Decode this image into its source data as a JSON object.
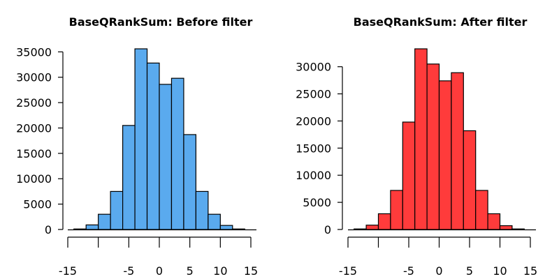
{
  "chart_data": [
    {
      "type": "bar",
      "title": "BaseQRankSum: Before filter",
      "color": "#5aaaee",
      "bin_edges": [
        -14,
        -12,
        -10,
        -8,
        -6,
        -4,
        -2,
        0,
        2,
        4,
        6,
        8,
        10,
        12,
        14
      ],
      "values": [
        100,
        900,
        3000,
        7500,
        20500,
        35600,
        32800,
        28600,
        29800,
        18700,
        7500,
        3000,
        800,
        100
      ],
      "xlim": [
        -15,
        15
      ],
      "ylim": [
        0,
        35600
      ],
      "xticks": [
        -15,
        -5,
        0,
        5,
        10,
        15
      ],
      "xtick_labels": [
        "-15",
        "-5",
        "0",
        "5",
        "10",
        "15"
      ],
      "yticks": [
        0,
        5000,
        10000,
        15000,
        20000,
        25000,
        30000,
        35000
      ],
      "ytick_labels": [
        "0",
        "5000",
        "10000",
        "15000",
        "20000",
        "25000",
        "30000",
        "35000"
      ],
      "grid": false
    },
    {
      "type": "bar",
      "title": "BaseQRankSum: After filter",
      "color": "#ff3b3b",
      "bin_edges": [
        -14,
        -12,
        -10,
        -8,
        -6,
        -4,
        -2,
        0,
        2,
        4,
        6,
        8,
        10,
        12,
        14
      ],
      "values": [
        100,
        800,
        2900,
        7200,
        19800,
        33300,
        30500,
        27400,
        28900,
        18200,
        7200,
        2900,
        700,
        100
      ],
      "xlim": [
        -15,
        15
      ],
      "ylim": [
        0,
        33300
      ],
      "xticks": [
        -15,
        -5,
        0,
        5,
        10,
        15
      ],
      "xtick_labels": [
        "-15",
        "-5",
        "0",
        "5",
        "10",
        "15"
      ],
      "yticks": [
        0,
        5000,
        10000,
        15000,
        20000,
        25000,
        30000
      ],
      "ytick_labels": [
        "0",
        "5000",
        "10000",
        "15000",
        "20000",
        "25000",
        "30000"
      ],
      "grid": false
    }
  ]
}
